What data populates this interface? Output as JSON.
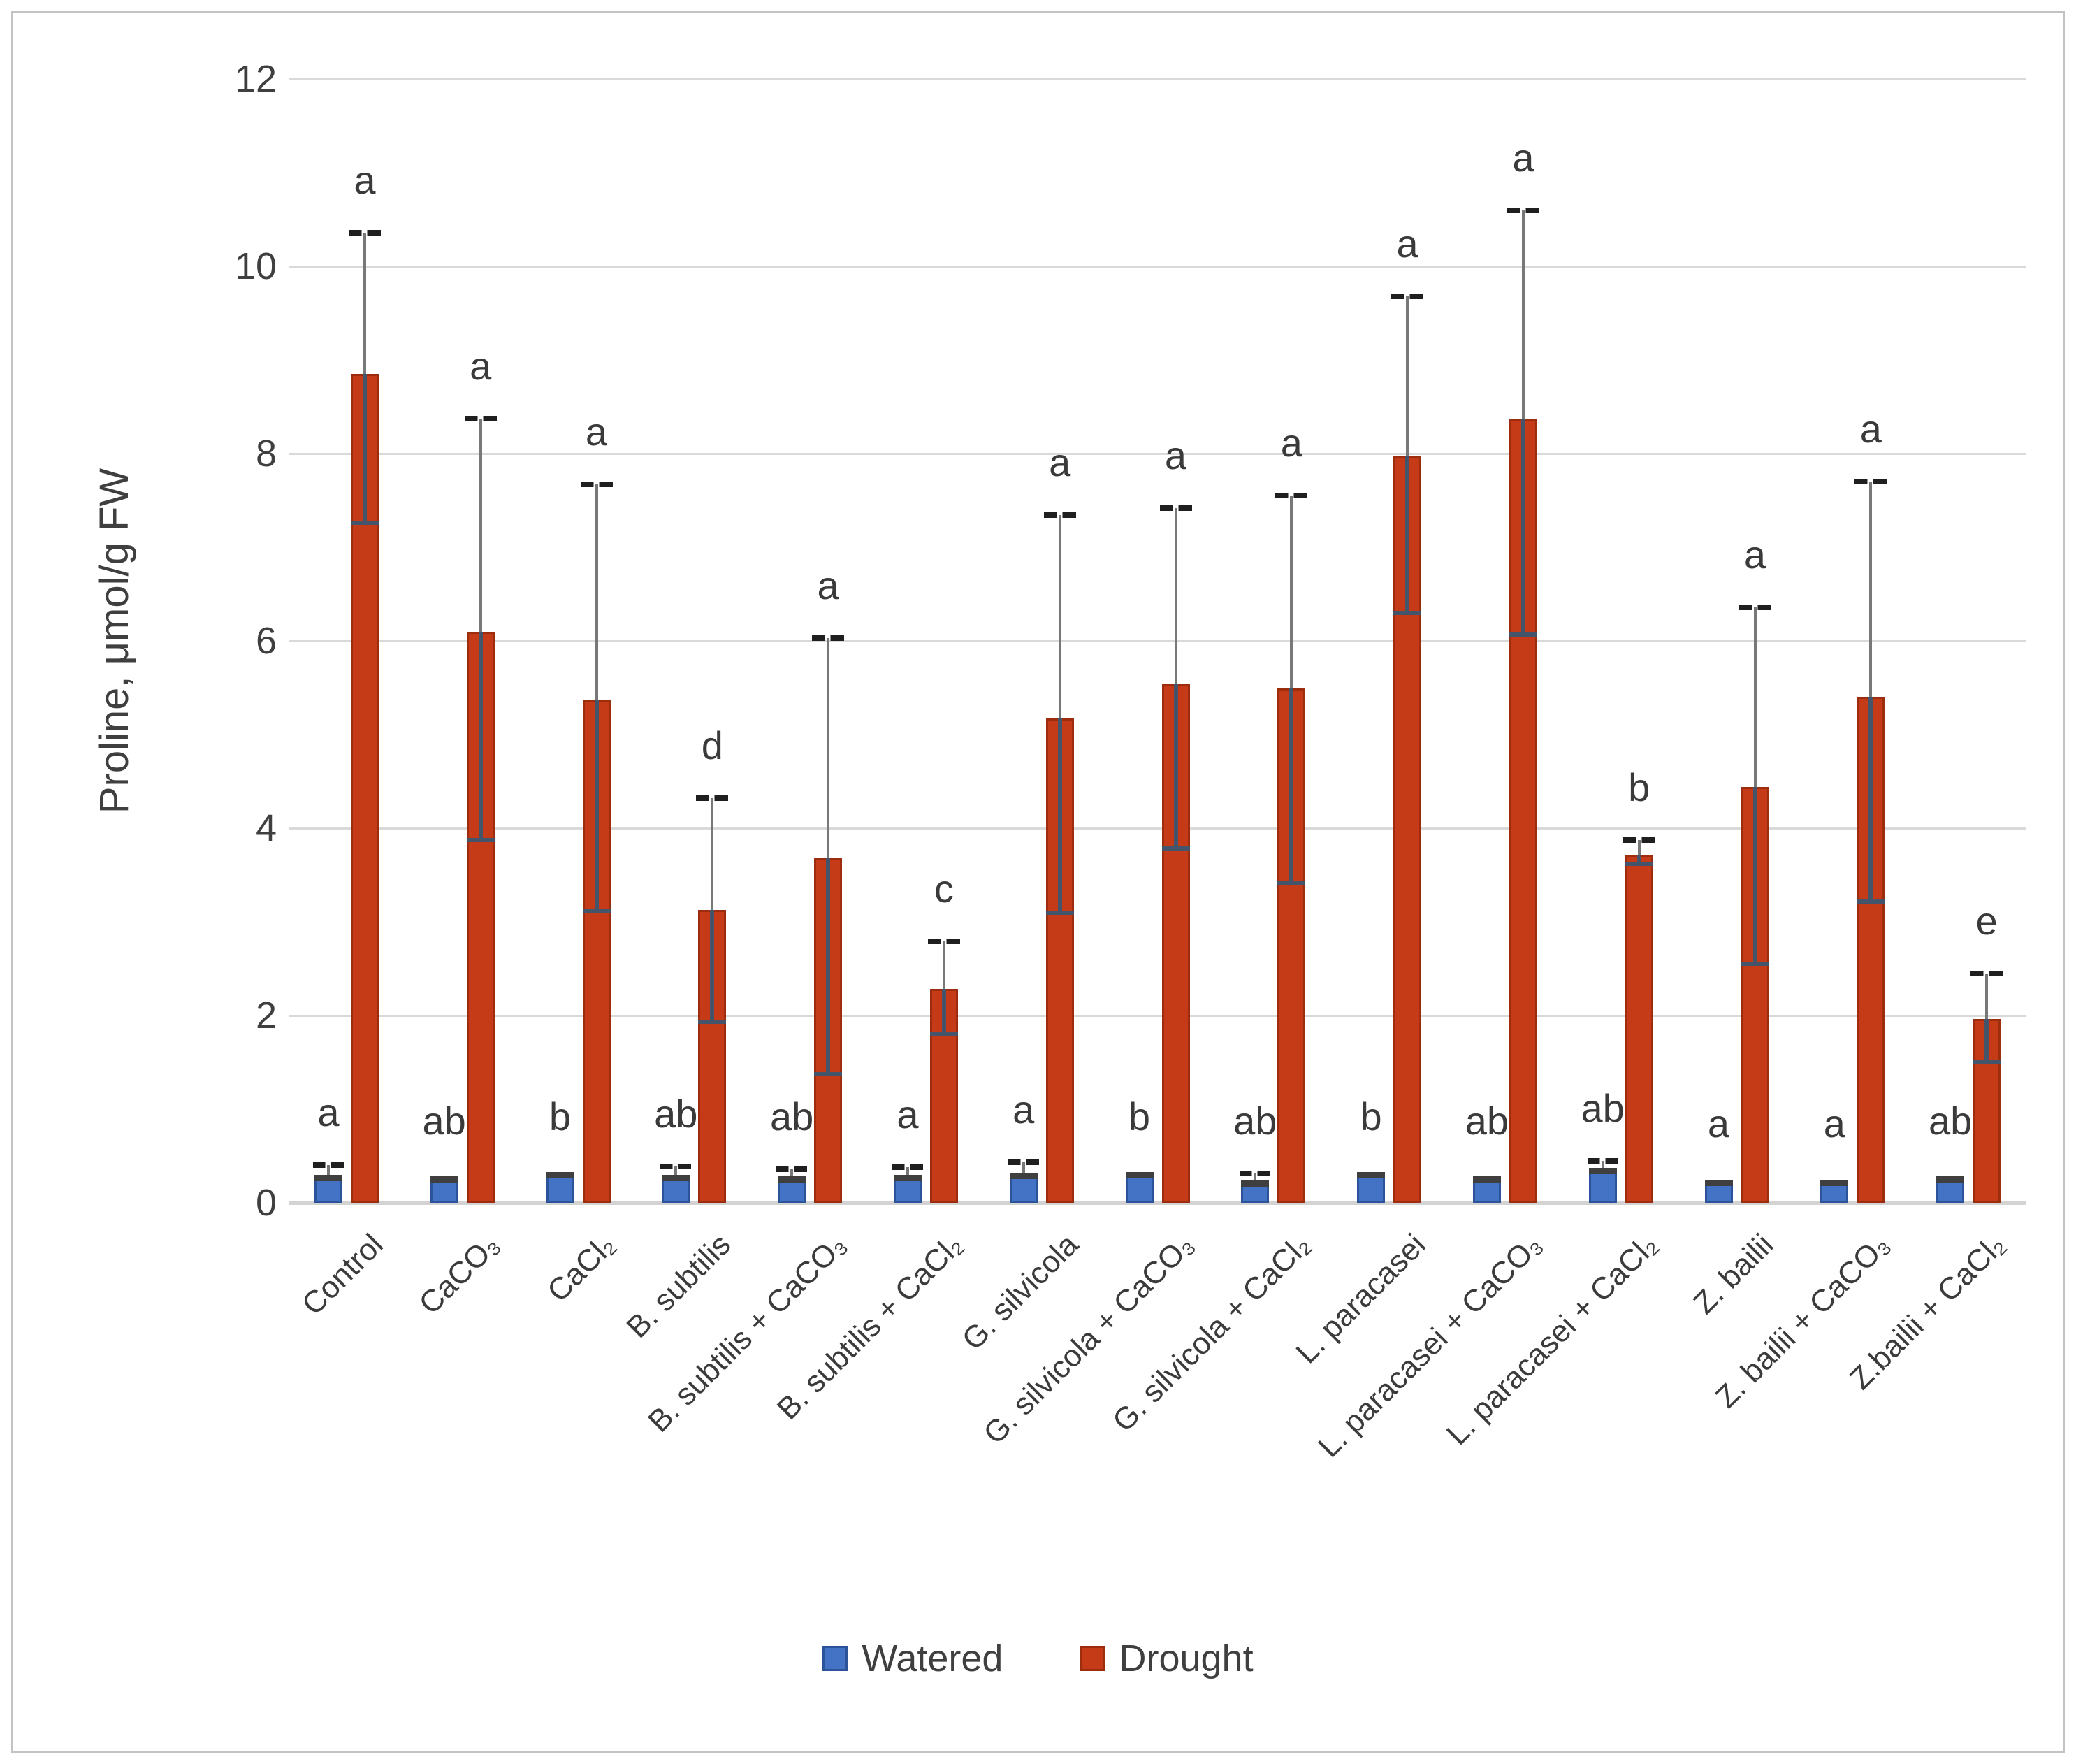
{
  "page": {
    "background": "#ffffff",
    "frame_color": "#c3c3c3"
  },
  "colors": {
    "watered_fill": "#4472C4",
    "watered_border": "#2C549B",
    "drought_fill": "#C53A17",
    "drought_border": "#9C2E0D",
    "gridline": "#D9D9D9",
    "error_stem": "#787878",
    "error_stem_inside": "#44546A",
    "error_cap_top": "#1F1F1F",
    "text": "#3F3F3F"
  },
  "chart_data": {
    "type": "bar",
    "title": "",
    "xlabel": "",
    "ylabel": "Proline, μmol/g FW",
    "ylim": [
      0,
      12
    ],
    "yticks": [
      0,
      2,
      4,
      6,
      8,
      10,
      12
    ],
    "grid": true,
    "legend_position": "bottom",
    "categories": [
      "Control",
      "CaCO₃",
      "CaCl₂",
      "B. subtilis",
      "B. subtilis + CaCO₃",
      "B. subtilis + CaCl₂",
      "G. silvicola",
      "G. silvicola + CaCO₃",
      "G. silvicola + CaCl₂",
      "L. paracasei",
      "L. paracasei + CaCO₃",
      "L. paracasei + CaCl₂",
      "Z. bailii",
      "Z. bailii + CaCO₃",
      "Z.bailii + CaCl₂"
    ],
    "series": [
      {
        "name": "Watered",
        "color": "#4472C4",
        "values": [
          0.3,
          0.28,
          0.33,
          0.3,
          0.28,
          0.3,
          0.32,
          0.33,
          0.24,
          0.33,
          0.28,
          0.37,
          0.25,
          0.25,
          0.28
        ],
        "err_low": [
          0.21,
          0.26,
          0.3,
          0.24,
          0.21,
          0.23,
          0.24,
          0.3,
          0.17,
          0.3,
          0.25,
          0.31,
          0.22,
          0.22,
          0.25
        ],
        "err_high": [
          0.4,
          0.31,
          0.36,
          0.39,
          0.36,
          0.38,
          0.43,
          0.36,
          0.31,
          0.36,
          0.31,
          0.45,
          0.28,
          0.28,
          0.31
        ],
        "letters": [
          "a",
          "ab",
          "b",
          "ab",
          "ab",
          "a",
          "a",
          "b",
          "ab",
          "b",
          "ab",
          "ab",
          "a",
          "a",
          "ab"
        ]
      },
      {
        "name": "Drought",
        "color": "#C53A17",
        "values": [
          8.85,
          6.1,
          5.37,
          3.13,
          3.69,
          2.28,
          5.17,
          5.54,
          5.49,
          7.98,
          8.37,
          3.72,
          4.44,
          5.4,
          1.96
        ],
        "err_low": [
          7.26,
          3.87,
          3.12,
          1.93,
          1.37,
          1.8,
          3.1,
          3.78,
          3.42,
          6.3,
          6.07,
          3.62,
          2.55,
          3.22,
          1.5
        ],
        "err_high": [
          10.36,
          8.37,
          7.67,
          4.32,
          6.03,
          2.79,
          7.34,
          7.42,
          7.55,
          9.68,
          10.6,
          3.87,
          6.36,
          7.7,
          2.45
        ],
        "letters": [
          "a",
          "a",
          "a",
          "d",
          "a",
          "c",
          "a",
          "a",
          "a",
          "a",
          "a",
          "b",
          "a",
          "a",
          "e"
        ]
      }
    ]
  }
}
